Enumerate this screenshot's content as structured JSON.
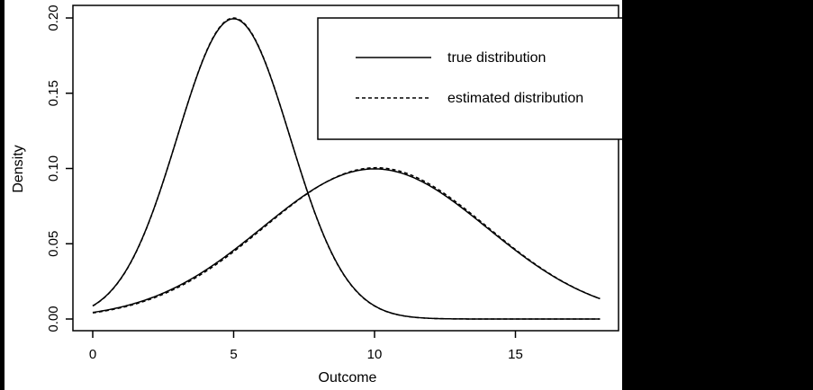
{
  "chart_data": {
    "type": "line",
    "title": "",
    "xlabel": "Outcome",
    "ylabel": "Density",
    "xlim": [
      0,
      18
    ],
    "ylim": [
      0,
      0.2
    ],
    "xticks": [
      0,
      5,
      10,
      15
    ],
    "xtick_labels": [
      "0",
      "5",
      "10",
      "15"
    ],
    "yticks": [
      0.0,
      0.05,
      0.1,
      0.15,
      0.2
    ],
    "ytick_labels": [
      "0.00",
      "0.05",
      "0.10",
      "0.15",
      "0.20"
    ],
    "grid": false,
    "legend_position": "top-right",
    "series": [
      {
        "name": "true distribution",
        "group": "curve A",
        "style": "solid",
        "distribution": "Normal(mean=5, sd=2)",
        "x": [
          0,
          1,
          2,
          3,
          4,
          5,
          6,
          7,
          8,
          9,
          10,
          11,
          12,
          13,
          14,
          15,
          16,
          17,
          18
        ],
        "values": [
          0.0088,
          0.027,
          0.0648,
          0.121,
          0.176,
          0.1995,
          0.176,
          0.121,
          0.0648,
          0.027,
          0.0088,
          0.0022,
          0.0004,
          0.0001,
          0.0,
          0.0,
          0.0,
          0.0,
          0.0
        ]
      },
      {
        "name": "estimated distribution",
        "group": "curve A",
        "style": "dashed",
        "x": [
          0,
          1,
          2,
          3,
          4,
          5,
          6,
          7,
          8,
          9,
          10,
          11,
          12,
          13,
          14,
          15,
          16,
          17,
          18
        ],
        "values": [
          0.008,
          0.0262,
          0.0645,
          0.1215,
          0.1768,
          0.2,
          0.1762,
          0.1205,
          0.064,
          0.0262,
          0.0082,
          0.002,
          0.0004,
          0.0001,
          0.0,
          0.0,
          0.0,
          0.0,
          0.0
        ]
      },
      {
        "name": "true distribution",
        "group": "curve B",
        "style": "solid",
        "distribution": "Normal(mean=10, sd=4)",
        "x": [
          0,
          1,
          2,
          3,
          4,
          5,
          6,
          7,
          8,
          9,
          10,
          11,
          12,
          13,
          14,
          15,
          16,
          17,
          18
        ],
        "values": [
          0.0044,
          0.0079,
          0.0135,
          0.0216,
          0.0324,
          0.0457,
          0.0605,
          0.0753,
          0.088,
          0.0967,
          0.0997,
          0.0967,
          0.088,
          0.0753,
          0.0605,
          0.0457,
          0.0324,
          0.0216,
          0.0135
        ]
      },
      {
        "name": "estimated distribution",
        "group": "curve B",
        "style": "dashed",
        "x": [
          0,
          1,
          2,
          3,
          4,
          5,
          6,
          7,
          8,
          9,
          10,
          11,
          12,
          13,
          14,
          15,
          16,
          17,
          18
        ],
        "values": [
          0.0042,
          0.0077,
          0.0133,
          0.0214,
          0.0322,
          0.0455,
          0.0605,
          0.0756,
          0.0885,
          0.0973,
          0.1005,
          0.0972,
          0.0882,
          0.0754,
          0.0605,
          0.0456,
          0.0323,
          0.0215,
          0.0134
        ]
      }
    ]
  },
  "legend": {
    "items": [
      {
        "label": "true distribution",
        "style": "solid"
      },
      {
        "label": "estimated distribution",
        "style": "dashed"
      }
    ]
  },
  "colors": {
    "line": "#000000",
    "background": "#ffffff",
    "frame": "#000000"
  }
}
